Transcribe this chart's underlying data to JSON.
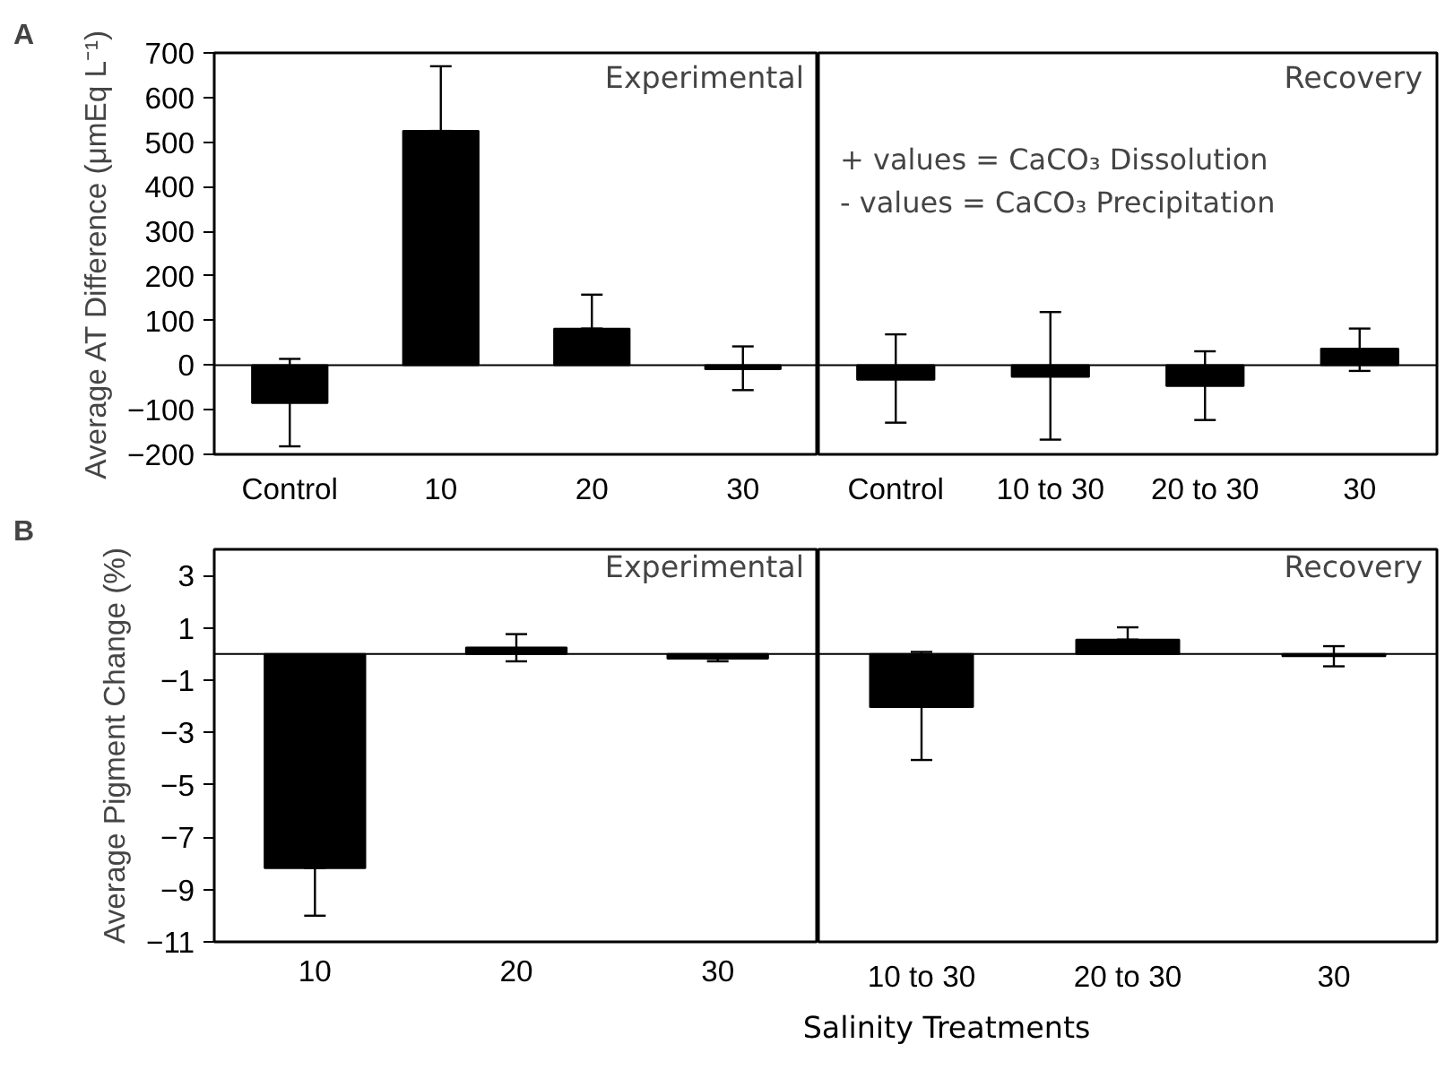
{
  "chart_data": [
    {
      "type": "bar",
      "title": "Experimental",
      "ylabel": "Average AT Difference (μmEq L⁻¹)",
      "annotations": [
        "A"
      ],
      "categories": [
        "Control",
        "10",
        "20",
        "30"
      ],
      "values": [
        -85,
        525,
        82,
        -9
      ],
      "errors": [
        [
          -182,
          14
        ],
        [
          525,
          670
        ],
        [
          82,
          158
        ],
        [
          -56,
          42
        ]
      ],
      "color": "#000000",
      "ylim": [
        -200,
        700
      ],
      "yticks": [
        -200,
        -100,
        0,
        100,
        200,
        300,
        400,
        500,
        600,
        700
      ],
      "ref_lines": [
        {
          "axis": "y",
          "value": 0,
          "label": null
        }
      ]
    },
    {
      "type": "bar",
      "title": "Recovery",
      "annotations": [
        "+ values = CaCO₃ Dissolution",
        "- values = CaCO₃ Precipitation"
      ],
      "categories": [
        "Control",
        "10 to 30",
        "20 to 30",
        "30"
      ],
      "values": [
        -33,
        -26,
        -47,
        37
      ],
      "errors": [
        [
          -129,
          69
        ],
        [
          -167,
          119
        ],
        [
          -123,
          31
        ],
        [
          -13,
          82
        ]
      ],
      "color": "#000000",
      "ylim": [
        -200,
        700
      ],
      "yticks": [
        -200,
        -100,
        0,
        100,
        200,
        300,
        400,
        500,
        600,
        700
      ],
      "tick_labels": "x",
      "ref_lines": [
        {
          "axis": "y",
          "value": 0,
          "label": null
        }
      ]
    },
    {
      "type": "bar",
      "title": "Experimental",
      "ylabel": "Average Pigment Change (%)",
      "xlabel": "Salinity Treatments",
      "annotations": [
        "B"
      ],
      "categories": [
        "10",
        "20",
        "30"
      ],
      "values": [
        -8.18,
        0.25,
        -0.18
      ],
      "errors": [
        [
          -10.0,
          -8.18
        ],
        [
          -0.28,
          0.76
        ],
        [
          -0.28,
          -0.18
        ]
      ],
      "color": "#000000",
      "ylim": [
        -11,
        4
      ],
      "yticks": [
        -11,
        -9,
        -7,
        -5,
        -3,
        -1,
        1,
        3
      ],
      "ref_lines": [
        {
          "axis": "y",
          "value": 0,
          "label": null
        }
      ]
    },
    {
      "type": "bar",
      "title": "Recovery",
      "categories": [
        "10 to 30",
        "20 to 30",
        "30"
      ],
      "values": [
        -2.03,
        0.55,
        -0.08
      ],
      "errors": [
        [
          -4.05,
          0.08
        ],
        [
          0.55,
          1.02
        ],
        [
          -0.47,
          0.3
        ]
      ],
      "color": "#000000",
      "ylim": [
        -11,
        4
      ],
      "yticks": [
        -11,
        -9,
        -7,
        -5,
        -3,
        -1,
        1,
        3
      ],
      "tick_labels": "x",
      "ref_lines": [
        {
          "axis": "y",
          "value": 0,
          "label": null
        }
      ]
    }
  ]
}
